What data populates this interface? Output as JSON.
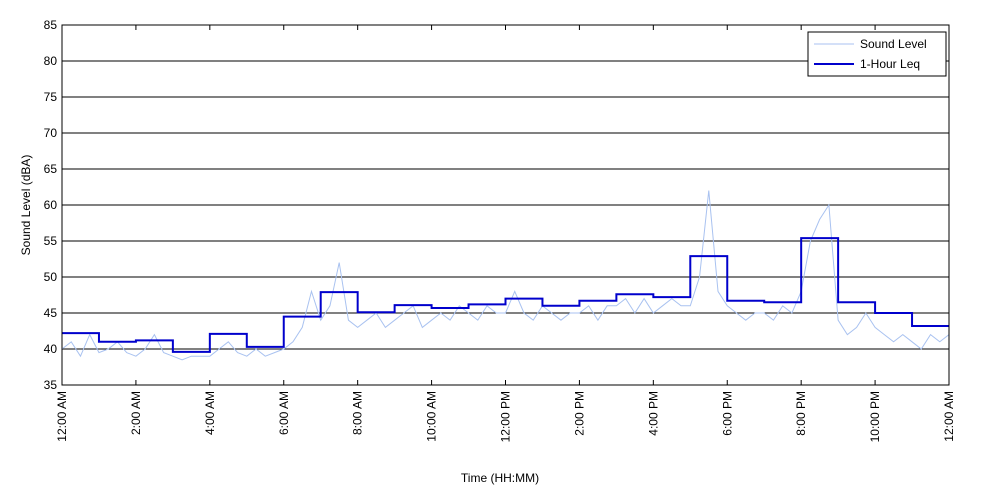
{
  "chart_data": {
    "type": "line",
    "xlabel": "Time (HH:MM)",
    "ylabel": "Sound Level (dBA)",
    "xlim": [
      0,
      24
    ],
    "ylim": [
      35,
      85
    ],
    "yticks": [
      35,
      40,
      45,
      50,
      55,
      60,
      65,
      70,
      75,
      80,
      85
    ],
    "xticks": [
      {
        "value": 0,
        "label": "12:00 AM"
      },
      {
        "value": 2,
        "label": "2:00 AM"
      },
      {
        "value": 4,
        "label": "4:00 AM"
      },
      {
        "value": 6,
        "label": "6:00 AM"
      },
      {
        "value": 8,
        "label": "8:00 AM"
      },
      {
        "value": 10,
        "label": "10:00 AM"
      },
      {
        "value": 12,
        "label": "12:00 PM"
      },
      {
        "value": 14,
        "label": "2:00 PM"
      },
      {
        "value": 16,
        "label": "4:00 PM"
      },
      {
        "value": 18,
        "label": "6:00 PM"
      },
      {
        "value": 20,
        "label": "8:00 PM"
      },
      {
        "value": 22,
        "label": "10:00 PM"
      },
      {
        "value": 24,
        "label": "12:00 AM"
      }
    ],
    "grid": "y",
    "legend": "upper right",
    "series": [
      {
        "name": "Sound Level",
        "color": "#a9c2f0",
        "drawstyle": "line",
        "x": [
          0,
          0.25,
          0.5,
          0.75,
          1,
          1.25,
          1.5,
          1.75,
          2,
          2.25,
          2.5,
          2.75,
          3,
          3.25,
          3.5,
          3.75,
          4,
          4.25,
          4.5,
          4.75,
          5,
          5.25,
          5.5,
          5.75,
          6,
          6.25,
          6.5,
          6.75,
          7,
          7.25,
          7.5,
          7.75,
          8,
          8.25,
          8.5,
          8.75,
          9,
          9.25,
          9.5,
          9.75,
          10,
          10.25,
          10.5,
          10.75,
          11,
          11.25,
          11.5,
          11.75,
          12,
          12.25,
          12.5,
          12.75,
          13,
          13.25,
          13.5,
          13.75,
          14,
          14.25,
          14.5,
          14.75,
          15,
          15.25,
          15.5,
          15.75,
          16,
          16.25,
          16.5,
          16.75,
          17,
          17.25,
          17.5,
          17.75,
          18,
          18.25,
          18.5,
          18.75,
          19,
          19.25,
          19.5,
          19.75,
          20,
          20.25,
          20.5,
          20.75,
          21,
          21.25,
          21.5,
          21.75,
          22,
          22.25,
          22.5,
          22.75,
          23,
          23.25,
          23.5,
          23.75,
          24
        ],
        "values": [
          40,
          41,
          39,
          42,
          39.5,
          40,
          41,
          39.5,
          39,
          40,
          42,
          39.5,
          39,
          38.5,
          39,
          39,
          39,
          40,
          41,
          39.5,
          39,
          40,
          39,
          39.5,
          40,
          41,
          43,
          48,
          44,
          46,
          52,
          44,
          43,
          44,
          45,
          43,
          44,
          45,
          46,
          43,
          44,
          45,
          44,
          46,
          45,
          44,
          46,
          45,
          45,
          48,
          45,
          44,
          46,
          45,
          44,
          45,
          45,
          46,
          44,
          46,
          46,
          47,
          45,
          47,
          45,
          46,
          47,
          46,
          46,
          50,
          62,
          48,
          46,
          45,
          44,
          45,
          45,
          44,
          46,
          45,
          48,
          55,
          58,
          60,
          44,
          42,
          43,
          45,
          43,
          42,
          41,
          42,
          41,
          40,
          42,
          41,
          42
        ]
      },
      {
        "name": "1-Hour Leq",
        "color": "#0000cc",
        "drawstyle": "steps-post",
        "x": [
          0,
          1,
          2,
          3,
          4,
          5,
          6,
          7,
          8,
          9,
          10,
          11,
          12,
          13,
          14,
          15,
          16,
          17,
          18,
          19,
          20,
          21,
          22,
          23
        ],
        "values": [
          42.2,
          41.0,
          41.2,
          39.6,
          42.1,
          40.3,
          44.5,
          47.9,
          45.1,
          46.1,
          45.7,
          46.2,
          47.0,
          46.0,
          46.7,
          47.6,
          47.2,
          52.9,
          46.7,
          46.5,
          55.4,
          46.5,
          45.0,
          43.2
        ]
      }
    ]
  }
}
